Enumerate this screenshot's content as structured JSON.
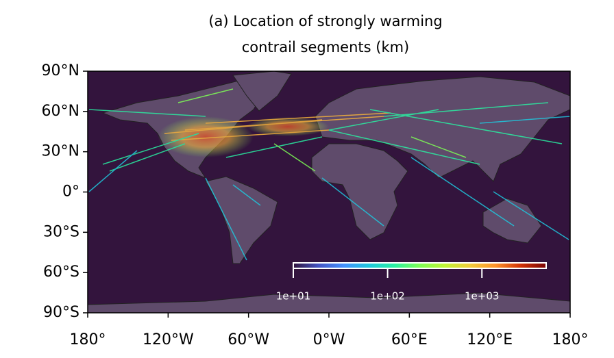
{
  "map": {
    "title": [
      "(a) Location of strongly warming",
      "contrail segments (km)"
    ],
    "xlim": [
      -180,
      180
    ],
    "ylim": [
      -90,
      90
    ],
    "xticks": [
      {
        "value": -180,
        "label": "180°"
      },
      {
        "value": -120,
        "label": "120°W"
      },
      {
        "value": -60,
        "label": "60°W"
      },
      {
        "value": 0,
        "label": "0°W"
      },
      {
        "value": 60,
        "label": "60°E"
      },
      {
        "value": 120,
        "label": "120°E"
      },
      {
        "value": 180,
        "label": "180°"
      }
    ],
    "yticks": [
      {
        "value": 90,
        "label": "90°N"
      },
      {
        "value": 60,
        "label": "60°N"
      },
      {
        "value": 30,
        "label": "30°N"
      },
      {
        "value": 0,
        "label": "0°"
      },
      {
        "value": -30,
        "label": "30°S"
      },
      {
        "value": -60,
        "label": "60°S"
      },
      {
        "value": -90,
        "label": "90°S"
      }
    ],
    "colorbar": {
      "scale": "log",
      "lim": [
        10,
        4800
      ],
      "colormap": "turbo",
      "ticks": [
        {
          "value": 10,
          "label": "1e+01"
        },
        {
          "value": 100,
          "label": "1e+02"
        },
        {
          "value": 1000,
          "label": "1e+03"
        }
      ]
    }
  }
}
